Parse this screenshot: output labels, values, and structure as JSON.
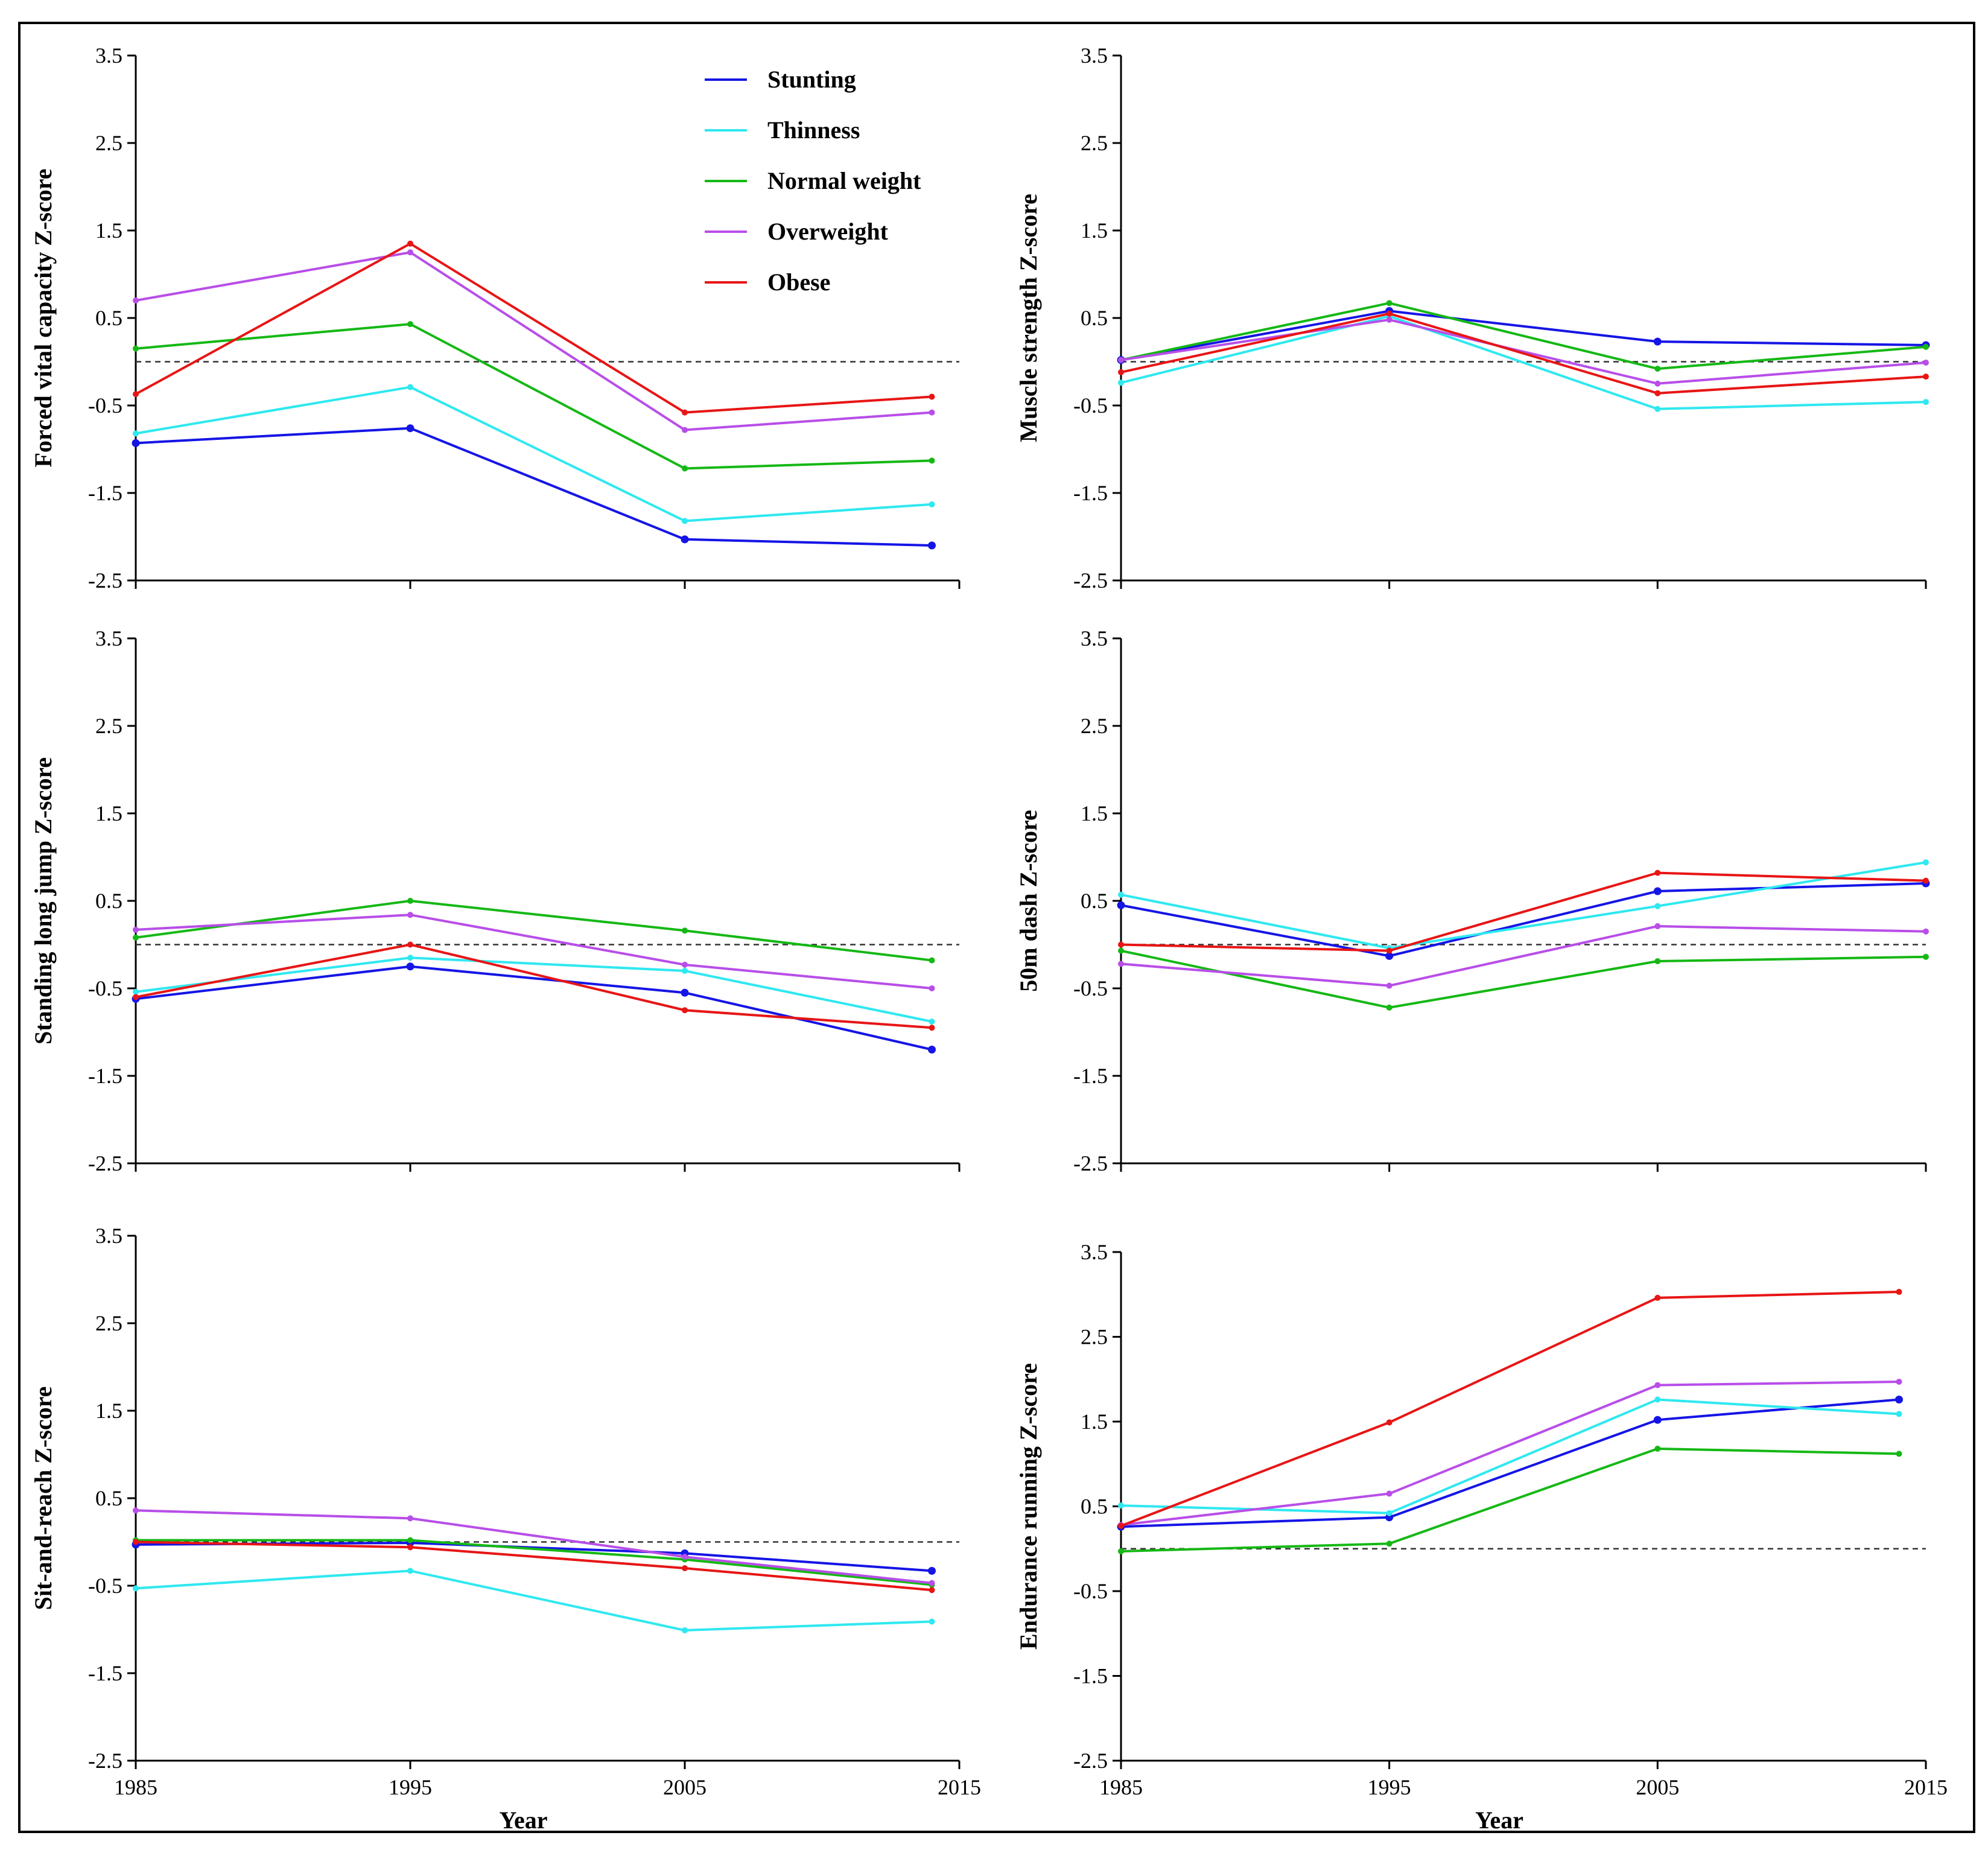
{
  "figure": {
    "years_label": "Year",
    "zero_line": 0
  },
  "legend": [
    {
      "key": "stunting",
      "label": "Stunting",
      "color": "#1515e6"
    },
    {
      "key": "thinness",
      "label": "Thinness",
      "color": "#2fe8f0"
    },
    {
      "key": "normal",
      "label": "Normal weight",
      "color": "#15b815"
    },
    {
      "key": "overweight",
      "label": "Overweight",
      "color": "#b84ee8"
    },
    {
      "key": "obese",
      "label": "Obese",
      "color": "#e81515"
    }
  ],
  "chart_data": [
    {
      "type": "line",
      "panel": "top-left",
      "ylabel": "Forced vital capacity Z-score",
      "xlabel": "",
      "x": [
        1985,
        1995,
        2005,
        2014
      ],
      "xticks": [
        1985,
        1995,
        2005,
        2015
      ],
      "xtick_labels": [
        "1985",
        "1995",
        "2005",
        "2015"
      ],
      "xlim": [
        1985,
        2015
      ],
      "ylim": [
        -2.5,
        3.5
      ],
      "yticks": [
        3.5,
        2.5,
        1.5,
        0.5,
        -0.5,
        -1.5,
        -2.5
      ],
      "ytick_labels": [
        "3.5",
        "2.5",
        "1.5",
        "0.5",
        "-0.5",
        "-1.5",
        "-2.5"
      ],
      "show_xtick_labels": false,
      "series": [
        {
          "key": "stunting",
          "name": "Stunting",
          "values": [
            -0.93,
            -0.76,
            -2.03,
            -2.1
          ]
        },
        {
          "key": "thinness",
          "name": "Thinness",
          "values": [
            -0.82,
            -0.29,
            -1.82,
            -1.63
          ]
        },
        {
          "key": "normal",
          "name": "Normal weight",
          "values": [
            0.15,
            0.43,
            -1.22,
            -1.13
          ]
        },
        {
          "key": "overweight",
          "name": "Overweight",
          "values": [
            0.7,
            1.25,
            -0.78,
            -0.58
          ]
        },
        {
          "key": "obese",
          "name": "Obese",
          "values": [
            -0.37,
            1.35,
            -0.58,
            -0.4
          ]
        }
      ]
    },
    {
      "type": "line",
      "panel": "top-right",
      "ylabel": "Muscle strength Z-score",
      "xlabel": "",
      "x": [
        1985,
        1995,
        2005,
        2015
      ],
      "xticks": [
        1985,
        1995,
        2005,
        2015
      ],
      "xtick_labels": [
        "1985",
        "1995",
        "2005",
        "2015"
      ],
      "xlim": [
        1985,
        2015
      ],
      "ylim": [
        -2.5,
        3.5
      ],
      "yticks": [
        3.5,
        2.5,
        1.5,
        0.5,
        -0.5,
        -1.5,
        -2.5
      ],
      "ytick_labels": [
        "3.5",
        "2.5",
        "1.5",
        "0.5",
        "-0.5",
        "-1.5",
        "-2.5"
      ],
      "show_xtick_labels": false,
      "series": [
        {
          "key": "stunting",
          "name": "Stunting",
          "values": [
            0.02,
            0.58,
            0.23,
            0.19
          ]
        },
        {
          "key": "thinness",
          "name": "Thinness",
          "values": [
            -0.24,
            0.52,
            -0.54,
            -0.46
          ]
        },
        {
          "key": "normal",
          "name": "Normal weight",
          "values": [
            0.02,
            0.67,
            -0.08,
            0.17
          ]
        },
        {
          "key": "overweight",
          "name": "Overweight",
          "values": [
            0.02,
            0.48,
            -0.25,
            -0.01
          ]
        },
        {
          "key": "obese",
          "name": "Obese",
          "values": [
            -0.12,
            0.55,
            -0.36,
            -0.17
          ]
        }
      ]
    },
    {
      "type": "line",
      "panel": "middle-left",
      "ylabel": "Standing long jump Z-score",
      "xlabel": "",
      "x": [
        1985,
        1995,
        2005,
        2014
      ],
      "xticks": [
        1985,
        1995,
        2005,
        2015
      ],
      "xtick_labels": [
        "1985",
        "1995",
        "2005",
        "2015"
      ],
      "xlim": [
        1985,
        2015
      ],
      "ylim": [
        -2.5,
        3.5
      ],
      "yticks": [
        3.5,
        2.5,
        1.5,
        0.5,
        -0.5,
        -1.5,
        -2.5
      ],
      "ytick_labels": [
        "3.5",
        "2.5",
        "1.5",
        "0.5",
        "-0.5",
        "-1.5",
        "-2.5"
      ],
      "show_xtick_labels": false,
      "series": [
        {
          "key": "stunting",
          "name": "Stunting",
          "values": [
            -0.62,
            -0.25,
            -0.55,
            -1.2
          ]
        },
        {
          "key": "thinness",
          "name": "Thinness",
          "values": [
            -0.54,
            -0.15,
            -0.3,
            -0.88
          ]
        },
        {
          "key": "normal",
          "name": "Normal weight",
          "values": [
            0.08,
            0.5,
            0.16,
            -0.18
          ]
        },
        {
          "key": "overweight",
          "name": "Overweight",
          "values": [
            0.17,
            0.34,
            -0.23,
            -0.5
          ]
        },
        {
          "key": "obese",
          "name": "Obese",
          "values": [
            -0.6,
            0.0,
            -0.75,
            -0.95
          ]
        }
      ]
    },
    {
      "type": "line",
      "panel": "middle-right",
      "ylabel": "50m dash Z-score",
      "xlabel": "",
      "x": [
        1985,
        1995,
        2005,
        2015
      ],
      "xticks": [
        1985,
        1995,
        2005,
        2015
      ],
      "xtick_labels": [
        "1985",
        "1995",
        "2005",
        "2015"
      ],
      "xlim": [
        1985,
        2015
      ],
      "ylim": [
        -2.5,
        3.5
      ],
      "yticks": [
        3.5,
        2.5,
        1.5,
        0.5,
        -0.5,
        -1.5,
        -2.5
      ],
      "ytick_labels": [
        "3.5",
        "2.5",
        "1.5",
        "0.5",
        "-0.5",
        "-1.5",
        "-2.5"
      ],
      "show_xtick_labels": false,
      "series": [
        {
          "key": "stunting",
          "name": "Stunting",
          "values": [
            0.45,
            -0.13,
            0.61,
            0.7
          ]
        },
        {
          "key": "thinness",
          "name": "Thinness",
          "values": [
            0.57,
            -0.04,
            0.44,
            0.94
          ]
        },
        {
          "key": "normal",
          "name": "Normal weight",
          "values": [
            -0.07,
            -0.72,
            -0.19,
            -0.14
          ]
        },
        {
          "key": "overweight",
          "name": "Overweight",
          "values": [
            -0.22,
            -0.47,
            0.21,
            0.15
          ]
        },
        {
          "key": "obese",
          "name": "Obese",
          "values": [
            0.0,
            -0.07,
            0.82,
            0.73
          ]
        }
      ]
    },
    {
      "type": "line",
      "panel": "bottom-left",
      "ylabel": "Sit-and-reach Z-score",
      "xlabel": "Year",
      "x": [
        1985,
        1995,
        2005,
        2014
      ],
      "xticks": [
        1985,
        1995,
        2005,
        2015
      ],
      "xtick_labels": [
        "1985",
        "1995",
        "2005",
        "2015"
      ],
      "xlim": [
        1985,
        2015
      ],
      "ylim": [
        -2.5,
        3.5
      ],
      "yticks": [
        3.5,
        2.5,
        1.5,
        0.5,
        -0.5,
        -1.5,
        -2.5
      ],
      "ytick_labels": [
        "3.5",
        "2.5",
        "1.5",
        "0.5",
        "-0.5",
        "-1.5",
        "-2.5"
      ],
      "show_xtick_labels": true,
      "series": [
        {
          "key": "stunting",
          "name": "Stunting",
          "values": [
            -0.03,
            -0.01,
            -0.13,
            -0.33
          ]
        },
        {
          "key": "thinness",
          "name": "Thinness",
          "values": [
            -0.53,
            -0.33,
            -1.01,
            -0.91
          ]
        },
        {
          "key": "normal",
          "name": "Normal weight",
          "values": [
            0.02,
            0.02,
            -0.2,
            -0.49
          ]
        },
        {
          "key": "overweight",
          "name": "Overweight",
          "values": [
            0.36,
            0.27,
            -0.17,
            -0.47
          ]
        },
        {
          "key": "obese",
          "name": "Obese",
          "values": [
            0.0,
            -0.06,
            -0.3,
            -0.55
          ]
        }
      ]
    },
    {
      "type": "line",
      "panel": "bottom-right",
      "ylabel": "Endurance running Z-score",
      "xlabel": "Year",
      "x": [
        1985,
        1995,
        2005,
        2014
      ],
      "xticks": [
        1985,
        1995,
        2005,
        2015
      ],
      "xtick_labels": [
        "1985",
        "1995",
        "2005",
        "2015"
      ],
      "xlim": [
        1985,
        2015
      ],
      "ylim": [
        -2.5,
        3.5
      ],
      "yticks": [
        3.5,
        2.5,
        1.5,
        0.5,
        -0.5,
        -1.5,
        -2.5
      ],
      "ytick_labels": [
        "3.5",
        "2.5",
        "1.5",
        "0.5",
        "-0.5",
        "-1.5",
        "-2.5"
      ],
      "show_xtick_labels": true,
      "series": [
        {
          "key": "stunting",
          "name": "Stunting",
          "values": [
            0.26,
            0.37,
            1.52,
            1.76
          ]
        },
        {
          "key": "thinness",
          "name": "Thinness",
          "values": [
            0.51,
            0.42,
            1.76,
            1.59
          ]
        },
        {
          "key": "normal",
          "name": "Normal weight",
          "values": [
            -0.03,
            0.06,
            1.18,
            1.12
          ]
        },
        {
          "key": "overweight",
          "name": "Overweight",
          "values": [
            0.28,
            0.65,
            1.93,
            1.97
          ]
        },
        {
          "key": "obese",
          "name": "Obese",
          "values": [
            0.27,
            1.49,
            2.96,
            3.03
          ]
        }
      ]
    }
  ]
}
